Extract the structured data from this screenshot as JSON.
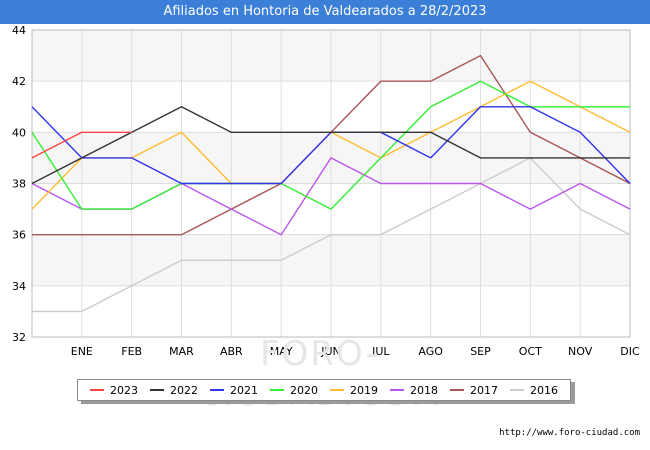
{
  "chart_data": {
    "type": "line",
    "title": "Afiliados en Hontoria de Valdearados a 28/2/2023",
    "categories": [
      "",
      "ENE",
      "FEB",
      "MAR",
      "ABR",
      "MAY",
      "JUN",
      "JUL",
      "AGO",
      "SEP",
      "OCT",
      "NOV",
      "DIC"
    ],
    "ylim": [
      32,
      44
    ],
    "yticks": [
      32,
      34,
      36,
      38,
      40,
      42,
      44
    ],
    "grid": true,
    "legend_position": "bottom",
    "series": [
      {
        "name": "2023",
        "color": "#ff4444",
        "values": [
          39,
          40,
          40,
          null,
          null,
          null,
          null,
          null,
          null,
          null,
          null,
          null,
          null
        ]
      },
      {
        "name": "2022",
        "color": "#333333",
        "values": [
          38,
          39,
          40,
          41,
          40,
          40,
          40,
          40,
          40,
          39,
          39,
          39,
          39
        ]
      },
      {
        "name": "2021",
        "color": "#3333ee",
        "values": [
          41,
          39,
          39,
          38,
          38,
          38,
          40,
          40,
          39,
          41,
          41,
          40,
          38
        ]
      },
      {
        "name": "2020",
        "color": "#33ee33",
        "values": [
          40,
          37,
          37,
          38,
          38,
          38,
          37,
          39,
          41,
          42,
          41,
          41,
          41
        ]
      },
      {
        "name": "2019",
        "color": "#ffbb33",
        "values": [
          37,
          39,
          39,
          40,
          38,
          38,
          40,
          39,
          40,
          41,
          42,
          41,
          40
        ]
      },
      {
        "name": "2018",
        "color": "#bb55ee",
        "values": [
          38,
          37,
          37,
          38,
          37,
          36,
          39,
          38,
          38,
          38,
          37,
          38,
          37
        ]
      },
      {
        "name": "2017",
        "color": "#aa5555",
        "values": [
          36,
          36,
          36,
          36,
          37,
          38,
          40,
          42,
          42,
          43,
          40,
          39,
          38
        ]
      },
      {
        "name": "2016",
        "color": "#cccccc",
        "values": [
          33,
          33,
          34,
          35,
          35,
          35,
          36,
          36,
          37,
          38,
          39,
          37,
          36
        ]
      }
    ]
  },
  "watermark": "FORO-CIUDAD.COM",
  "source": "http://www.foro-ciudad.com"
}
